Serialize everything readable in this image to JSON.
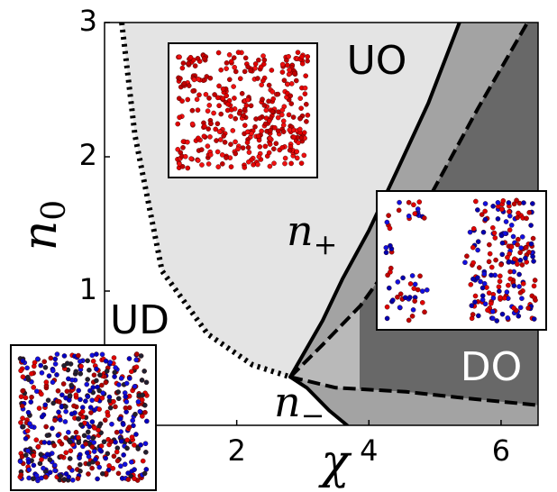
{
  "chart_data": {
    "type": "line",
    "xlabel": "χ",
    "ylabel": {
      "text": "n",
      "sub": "0"
    },
    "xlim": [
      0,
      6.56
    ],
    "ylim": [
      0,
      3
    ],
    "xticks": [
      2,
      4,
      6
    ],
    "yticks": [
      1,
      2,
      3
    ],
    "regions": [
      {
        "color": "#e4e4e4",
        "x": [
          0.26,
          0.46,
          0.87,
          1.56,
          2.24,
          2.81,
          3.3,
          3.6,
          4.0,
          4.42,
          4.9,
          5.37
        ],
        "y": [
          3,
          2.16,
          1.15,
          0.68,
          0.45,
          0.36,
          0.78,
          1.09,
          1.45,
          1.89,
          2.4,
          3
        ]
      },
      {
        "color": "#a3a3a3",
        "x": [
          2.81,
          3.3,
          3.6,
          4.0,
          4.42,
          4.9,
          5.37,
          6.56,
          6.56,
          3.67,
          3.4,
          3.06
        ],
        "y": [
          0.36,
          0.78,
          1.09,
          1.45,
          1.89,
          2.4,
          3,
          3,
          0,
          0,
          0.11,
          0.28
        ]
      },
      {
        "color": "#b9b9b9",
        "x": [
          2.81,
          3.3,
          3.86,
          3.86,
          3.5
        ],
        "y": [
          0.36,
          0.6,
          0.89,
          0.27,
          0.28
        ]
      },
      {
        "color": "#686868",
        "x": [
          3.86,
          3.86,
          4.4,
          4.83,
          5.65,
          6.4,
          6.56,
          6.56,
          5.5,
          4.56
        ],
        "y": [
          0.27,
          0.89,
          1.25,
          1.62,
          2.36,
          3,
          3,
          0.15,
          0.2,
          0.25
        ]
      }
    ],
    "series": [
      {
        "color": "#000000",
        "style": "dotted",
        "x": [
          0.26,
          0.46,
          0.87,
          1.56,
          2.24,
          2.81
        ],
        "y": [
          3,
          2.16,
          1.15,
          0.68,
          0.45,
          0.36
        ]
      },
      {
        "color": "#000000",
        "style": "solid",
        "x": [
          2.81,
          3.3,
          3.6,
          4.0,
          4.42,
          4.9,
          5.37
        ],
        "y": [
          0.36,
          0.78,
          1.09,
          1.45,
          1.89,
          2.4,
          3
        ]
      },
      {
        "color": "#000000",
        "style": "solid",
        "x": [
          2.81,
          3.06,
          3.4,
          3.67
        ],
        "y": [
          0.36,
          0.28,
          0.11,
          0
        ]
      },
      {
        "color": "#000000",
        "style": "dashed",
        "x": [
          2.81,
          3.3,
          3.87,
          4.4,
          4.83,
          5.65,
          6.4
        ],
        "y": [
          0.36,
          0.6,
          0.89,
          1.25,
          1.62,
          2.36,
          3
        ]
      },
      {
        "color": "#000000",
        "style": "dashed",
        "x": [
          2.81,
          3.5,
          4.56,
          5.5,
          6.56
        ],
        "y": [
          0.36,
          0.28,
          0.25,
          0.2,
          0.15
        ]
      }
    ],
    "annotations": [
      "UO",
      "UD",
      "DO"
    ],
    "curve_labels": [
      {
        "text": "n",
        "sub": "+"
      },
      {
        "text": "n",
        "sub": "−"
      }
    ]
  }
}
